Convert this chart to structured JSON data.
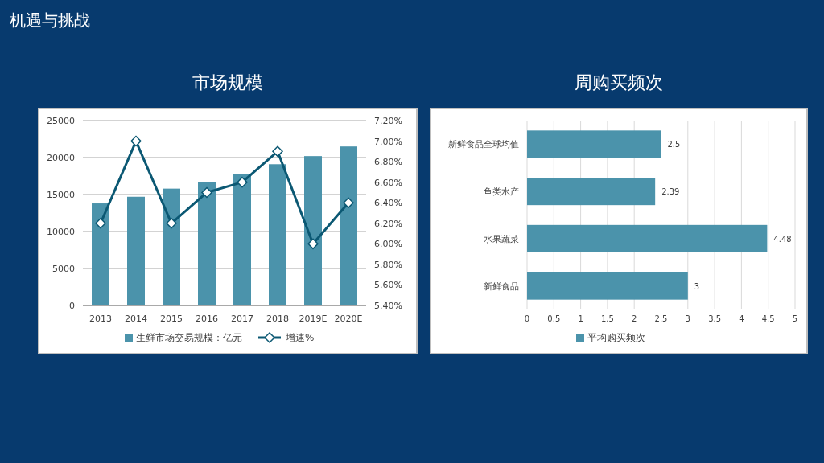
{
  "chart_data": [
    {
      "type": "bar",
      "title": "市场规模",
      "annotations": [
        "机遇与挑战"
      ],
      "categories": [
        "2013",
        "2014",
        "2015",
        "2016",
        "2017",
        "2018",
        "2019E",
        "2020E"
      ],
      "series": [
        {
          "name": "生鲜市场交易规模：亿元",
          "type": "bar",
          "color": "#4b93ab",
          "values": [
            13800,
            14700,
            15800,
            16700,
            17800,
            19100,
            20200,
            21500
          ]
        },
        {
          "name": "增速%",
          "type": "line",
          "axis": "y2",
          "marker": "diamond",
          "color": "#0b5873",
          "values": [
            6.2,
            7.0,
            6.2,
            6.5,
            6.6,
            6.9,
            6.0,
            6.4
          ]
        }
      ],
      "ylim": [
        0,
        25000
      ],
      "yticks": [
        0,
        5000,
        10000,
        15000,
        20000,
        25000
      ],
      "y2lim": [
        5.4,
        7.2
      ],
      "y2ticks": [
        {
          "value": 5.4,
          "label": "5.40%"
        },
        {
          "value": 5.6,
          "label": "5.60%"
        },
        {
          "value": 5.8,
          "label": "5.80%"
        },
        {
          "value": 6.0,
          "label": "6.00%"
        },
        {
          "value": 6.2,
          "label": "6.20%"
        },
        {
          "value": 6.4,
          "label": "6.40%"
        },
        {
          "value": 6.6,
          "label": "6.60%"
        },
        {
          "value": 6.8,
          "label": "6.80%"
        },
        {
          "value": 7.0,
          "label": "7.00%"
        },
        {
          "value": 7.2,
          "label": "7.20%"
        }
      ],
      "grid": "y",
      "legend": "bottom"
    },
    {
      "type": "bar",
      "title": "周购买频次",
      "orientation": "horizontal",
      "categories": [
        "新鲜食品全球均值",
        "鱼类水产",
        "水果蔬菜",
        "新鲜食品"
      ],
      "series": [
        {
          "name": "平均购买频次",
          "color": "#4b93ab",
          "values": [
            2.5,
            2.39,
            4.48,
            3
          ]
        }
      ],
      "xlim": [
        0,
        5
      ],
      "xticks": [
        0,
        0.5,
        1,
        1.5,
        2,
        2.5,
        3,
        3.5,
        4,
        4.5,
        5
      ],
      "grid": "x",
      "legend": "bottom",
      "data_labels": true
    }
  ]
}
